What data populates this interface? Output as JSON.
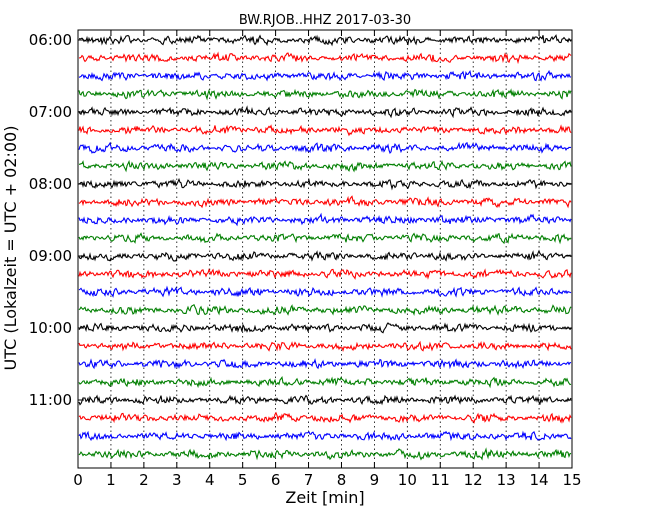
{
  "chart_data": {
    "type": "line",
    "title": "BW.RJOB..HHZ 2017-03-30",
    "xlabel": "Zeit  [min]",
    "ylabel": "UTC (Lokalzeit = UTC + 02:00)",
    "xlim": [
      0,
      15
    ],
    "x_ticks": [
      "0",
      "1",
      "2",
      "3",
      "4",
      "5",
      "6",
      "7",
      "8",
      "9",
      "10",
      "11",
      "12",
      "13",
      "14",
      "15"
    ],
    "y_tick_labels": [
      "06:00",
      "07:00",
      "08:00",
      "09:00",
      "10:00",
      "11:00"
    ],
    "trace_count": 24,
    "trace_colors": [
      "#000000",
      "#ff0000",
      "#0000ff",
      "#007f00"
    ],
    "grid": "vertical-dotted"
  }
}
